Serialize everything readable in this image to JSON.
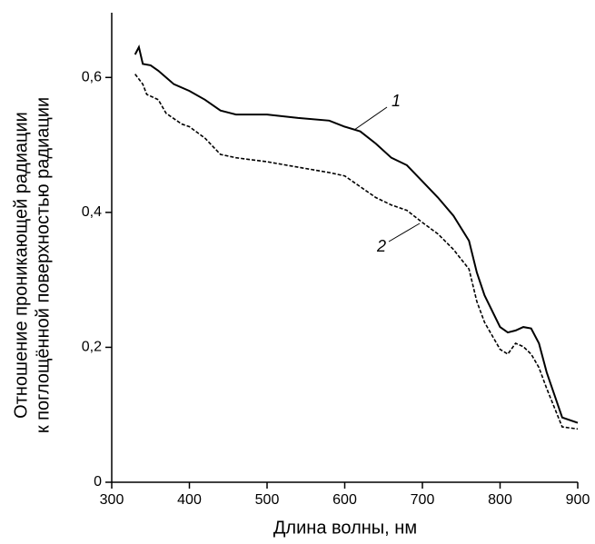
{
  "chart_data": {
    "type": "line",
    "xlabel": "Длина волны, нм",
    "ylabel": [
      "Отношение проникающей радиации",
      "к поглощённой  поверхностью радиации"
    ],
    "xlim": [
      300,
      900
    ],
    "ylim": [
      0,
      0.7
    ],
    "xticks": [
      300,
      400,
      500,
      600,
      700,
      800,
      900
    ],
    "yticks": [
      0,
      {
        "value": 0.2,
        "label": "0,2"
      },
      {
        "value": 0.4,
        "label": "0,4"
      },
      {
        "value": 0.6,
        "label": "0,6"
      }
    ],
    "series": [
      {
        "name": "1",
        "color": "#000000",
        "dash": "solid",
        "x": [
          330,
          335,
          340,
          350,
          360,
          370,
          380,
          400,
          420,
          440,
          460,
          500,
          540,
          580,
          600,
          620,
          640,
          660,
          680,
          700,
          720,
          740,
          760,
          770,
          780,
          800,
          810,
          820,
          830,
          840,
          850,
          860,
          880,
          900
        ],
        "values": [
          0.634,
          0.645,
          0.62,
          0.618,
          0.61,
          0.6,
          0.59,
          0.58,
          0.567,
          0.551,
          0.545,
          0.545,
          0.54,
          0.536,
          0.527,
          0.52,
          0.502,
          0.481,
          0.47,
          0.446,
          0.422,
          0.395,
          0.358,
          0.311,
          0.277,
          0.23,
          0.222,
          0.225,
          0.23,
          0.228,
          0.206,
          0.163,
          0.096,
          0.088
        ]
      },
      {
        "name": "2",
        "color": "#000000",
        "dash": "dashed",
        "x": [
          330,
          340,
          345,
          360,
          370,
          390,
          400,
          420,
          440,
          460,
          500,
          540,
          580,
          600,
          620,
          640,
          660,
          680,
          700,
          720,
          740,
          760,
          770,
          780,
          800,
          810,
          820,
          830,
          840,
          850,
          860,
          880,
          900
        ],
        "values": [
          0.605,
          0.59,
          0.575,
          0.567,
          0.547,
          0.531,
          0.527,
          0.51,
          0.486,
          0.481,
          0.475,
          0.467,
          0.459,
          0.454,
          0.438,
          0.422,
          0.411,
          0.403,
          0.385,
          0.368,
          0.345,
          0.316,
          0.268,
          0.237,
          0.197,
          0.19,
          0.206,
          0.201,
          0.19,
          0.17,
          0.139,
          0.082,
          0.079
        ]
      }
    ]
  }
}
